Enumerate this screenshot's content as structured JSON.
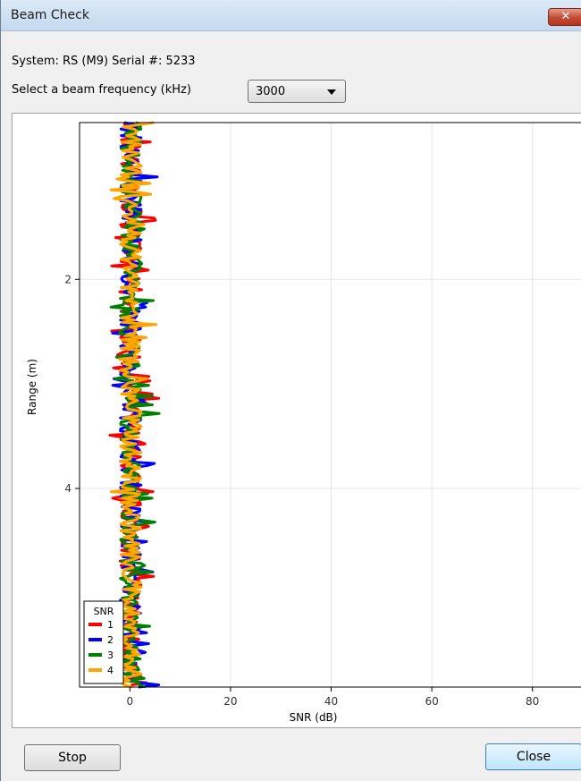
{
  "window": {
    "title": "Beam Check",
    "close_glyph": "✕"
  },
  "system_info": "System: RS (M9) Serial #: 5233",
  "frequency": {
    "label": "Select a beam frequency (kHz)",
    "selected": "3000"
  },
  "buttons": {
    "stop": "Stop",
    "close": "Close"
  },
  "colors": {
    "beam1": "#ff0000",
    "beam2": "#0000ff",
    "beam3": "#008000",
    "beam4": "#ffa500",
    "grid": "#e6e6e6"
  },
  "chart_data": {
    "type": "line",
    "xlabel": "SNR (dB)",
    "ylabel": "Range (m)",
    "xlim": [
      -10,
      90
    ],
    "ylim": [
      5.9,
      0.5
    ],
    "y_inverted": true,
    "xticks": [
      0,
      20,
      40,
      60,
      80
    ],
    "yticks": [
      2,
      4
    ],
    "grid": true,
    "legend": {
      "title": "SNR",
      "placement": "bottom-left",
      "entries": [
        "1",
        "2",
        "3",
        "4"
      ]
    },
    "series": [
      {
        "name": "1",
        "description": "noise around 0 dB, range ~-3 to +5 dB, spanning full range"
      },
      {
        "name": "2",
        "description": "noise around 0 dB, range ~-3 to +6 dB, spanning full range"
      },
      {
        "name": "3",
        "description": "noise around 0 dB, range ~-4 to +8 dB, spanning full range"
      },
      {
        "name": "4",
        "description": "noise around 0 dB, range ~-3 to +4 dB, spanning full range"
      }
    ],
    "range_start": 0.5,
    "range_end": 5.9,
    "value_center": 0,
    "value_spread": [
      -4,
      6
    ]
  }
}
